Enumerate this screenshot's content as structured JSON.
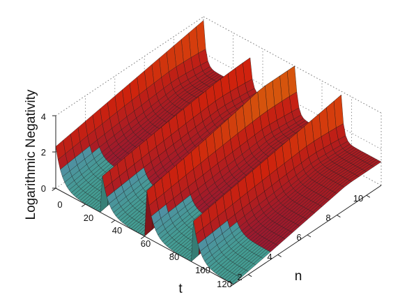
{
  "chart_data": {
    "type": "surface",
    "zlabel": "Logarithmic Negativity",
    "xlabel": "t",
    "ylabel": "n",
    "t_range": [
      0,
      120
    ],
    "n_range": [
      1,
      11
    ],
    "z_range": [
      0,
      4
    ],
    "t_ticks": [
      0,
      20,
      40,
      60,
      80,
      100,
      120
    ],
    "n_ticks": [
      2,
      4,
      6,
      8,
      10
    ],
    "z_ticks": [
      0,
      2,
      4
    ],
    "revival_times": [
      0,
      31,
      62,
      93,
      124
    ],
    "peak_height_high_n": 3.8,
    "peak_height_low_n": 2.3,
    "baseline_high_n": 1.3,
    "baseline_low_n": 0.0,
    "grid": true,
    "colormap": [
      "#5ad0c2",
      "#8a78ff",
      "#3a5fd0",
      "#c0204a",
      "#ff2a10",
      "#ff8a10"
    ]
  }
}
